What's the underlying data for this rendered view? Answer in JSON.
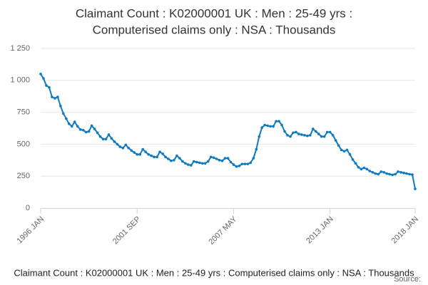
{
  "chart_data": {
    "type": "line",
    "title": [
      "Claimant Count : K02000001 UK : Men : 25-49 yrs :",
      "Computerised claims only : NSA : Thousands"
    ],
    "footer": "Claimant Count : K02000001 UK : Men : 25-49 yrs : Computerised claims only : NSA : Thousands",
    "source": "Source:",
    "categories": [
      "1996 JAN",
      null,
      null,
      null,
      null,
      null,
      null,
      null,
      null,
      null,
      null,
      null,
      null,
      null,
      null,
      null,
      null,
      null,
      null,
      null,
      null,
      null,
      null,
      null,
      null,
      null,
      null,
      null,
      null,
      null,
      null,
      null,
      null,
      null,
      "2001 SEP",
      null,
      null,
      null,
      null,
      null,
      null,
      null,
      null,
      null,
      null,
      null,
      null,
      null,
      null,
      null,
      null,
      null,
      null,
      null,
      null,
      null,
      null,
      null,
      null,
      null,
      null,
      null,
      null,
      null,
      null,
      null,
      null,
      null,
      "2007 MAY",
      null,
      null,
      null,
      null,
      null,
      null,
      null,
      null,
      null,
      null,
      null,
      null,
      null,
      null,
      null,
      null,
      null,
      null,
      null,
      null,
      null,
      null,
      null,
      null,
      null,
      null,
      null,
      null,
      null,
      null,
      null,
      null,
      null,
      "2013 JAN",
      null,
      null,
      null,
      null,
      null,
      null,
      null,
      null,
      null,
      null,
      null,
      null,
      null,
      null,
      null,
      null,
      null,
      null,
      null,
      null,
      null,
      null,
      null,
      null,
      null,
      null,
      null,
      null,
      null,
      "2018 JAN"
    ],
    "series": [
      {
        "name": "Thousands",
        "color": "#0f7abf",
        "values": [
          1050,
          1015,
          960,
          945,
          870,
          860,
          870,
          800,
          740,
          700,
          660,
          640,
          675,
          640,
          615,
          610,
          595,
          600,
          645,
          620,
          590,
          560,
          540,
          540,
          575,
          545,
          520,
          500,
          480,
          470,
          495,
          470,
          450,
          435,
          420,
          420,
          460,
          440,
          420,
          410,
          400,
          400,
          440,
          425,
          400,
          385,
          370,
          375,
          410,
          390,
          365,
          350,
          340,
          335,
          365,
          360,
          355,
          350,
          350,
          365,
          400,
          395,
          385,
          375,
          370,
          390,
          390,
          360,
          340,
          325,
          330,
          345,
          345,
          345,
          355,
          390,
          460,
          560,
          630,
          650,
          645,
          640,
          640,
          680,
          680,
          650,
          600,
          570,
          560,
          590,
          595,
          580,
          575,
          570,
          565,
          570,
          620,
          600,
          580,
          560,
          560,
          595,
          595,
          570,
          530,
          490,
          455,
          445,
          455,
          420,
          380,
          350,
          320,
          305,
          315,
          305,
          290,
          280,
          270,
          265,
          285,
          280,
          270,
          265,
          260,
          265,
          285,
          280,
          275,
          270,
          265,
          262,
          150
        ]
      }
    ],
    "ylim": [
      0,
      1250
    ],
    "yticks": [
      0,
      250,
      500,
      750,
      {
        "value": 1000,
        "label": "1 000"
      },
      {
        "value": 1250,
        "label": "1 250"
      }
    ],
    "grid": true
  }
}
